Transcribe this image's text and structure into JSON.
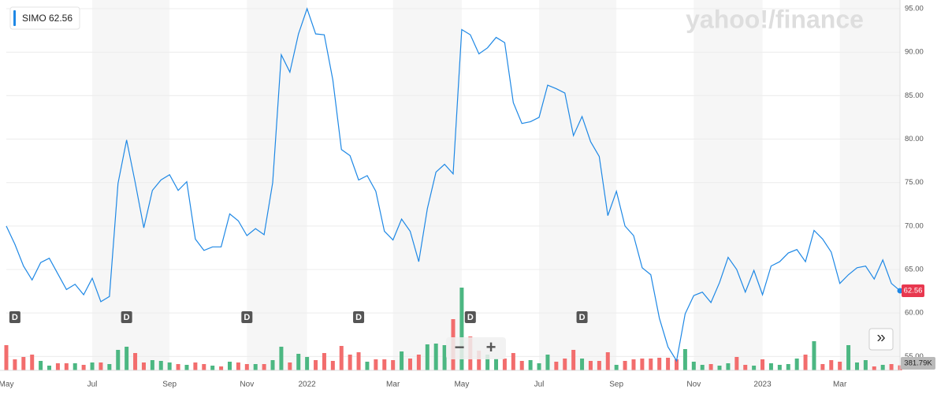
{
  "chart_data": {
    "type": "line",
    "watermark": "yahoo!/finance",
    "categories": [
      "May",
      null,
      null,
      null,
      null,
      null,
      null,
      null,
      null,
      null,
      "Jul",
      null,
      null,
      null,
      null,
      null,
      null,
      null,
      null,
      "Sep",
      null,
      null,
      null,
      null,
      null,
      null,
      null,
      null,
      "Nov",
      null,
      null,
      null,
      null,
      null,
      null,
      "2022",
      null,
      null,
      null,
      null,
      null,
      null,
      null,
      null,
      null,
      "Mar",
      null,
      null,
      null,
      null,
      null,
      null,
      null,
      "May",
      null,
      null,
      null,
      null,
      null,
      null,
      null,
      null,
      "Jul",
      null,
      null,
      null,
      null,
      null,
      null,
      null,
      null,
      "Sep",
      null,
      null,
      null,
      null,
      null,
      null,
      null,
      null,
      "Nov",
      null,
      null,
      null,
      null,
      null,
      null,
      null,
      "2023",
      null,
      null,
      null,
      null,
      null,
      null,
      null,
      null,
      "Mar",
      null,
      null,
      null,
      null,
      null,
      null,
      null
    ],
    "series": [
      {
        "name": "SIMO",
        "color": "#1e88e5",
        "values": [
          70.0,
          67.9,
          65.4,
          63.8,
          65.8,
          66.3,
          64.5,
          62.7,
          63.3,
          62.1,
          64.0,
          61.3,
          61.9,
          74.9,
          79.9,
          75.0,
          69.8,
          74.1,
          75.3,
          75.9,
          74.1,
          75.1,
          68.5,
          67.2,
          67.6,
          67.6,
          71.4,
          70.6,
          68.9,
          69.7,
          69.0,
          75.0,
          89.7,
          87.7,
          92.1,
          95.0,
          92.1,
          92.0,
          86.8,
          78.8,
          78.1,
          75.3,
          75.8,
          74.0,
          69.4,
          68.4,
          70.8,
          69.4,
          65.9,
          72.0,
          76.2,
          77.1,
          76.0,
          92.6,
          92.0,
          89.8,
          90.5,
          91.7,
          91.1,
          84.2,
          81.8,
          82.0,
          82.5,
          86.2,
          85.8,
          85.3,
          80.4,
          82.6,
          79.7,
          78.0,
          71.2,
          74.0,
          70.0,
          68.9,
          65.2,
          64.4,
          59.4,
          56.1,
          54.5,
          59.9,
          62.0,
          62.4,
          61.2,
          63.5,
          66.4,
          65.0,
          62.4,
          64.9,
          62.1,
          65.4,
          65.9,
          66.9,
          67.3,
          65.9,
          69.5,
          68.5,
          67.0,
          63.4,
          64.4,
          65.2,
          65.4,
          63.9,
          66.1,
          63.4,
          62.56
        ]
      }
    ],
    "volume": {
      "axis": "y2",
      "up_color": "#4cb782",
      "down_color": "#f26d6d",
      "values": [
        1920000,
        840000,
        1020000,
        1200000,
        720000,
        360000,
        540000,
        540000,
        540000,
        420000,
        600000,
        600000,
        480000,
        1560000,
        1800000,
        1320000,
        600000,
        780000,
        720000,
        600000,
        480000,
        420000,
        600000,
        480000,
        360000,
        300000,
        660000,
        600000,
        480000,
        480000,
        480000,
        780000,
        1800000,
        600000,
        1260000,
        1020000,
        780000,
        1320000,
        720000,
        1860000,
        1200000,
        1380000,
        660000,
        840000,
        840000,
        780000,
        1440000,
        900000,
        1200000,
        1980000,
        2040000,
        1920000,
        3900000,
        6300000,
        2580000,
        1500000,
        1200000,
        900000,
        900000,
        1320000,
        720000,
        780000,
        540000,
        1200000,
        660000,
        900000,
        1560000,
        900000,
        720000,
        720000,
        1380000,
        420000,
        720000,
        840000,
        900000,
        900000,
        960000,
        960000,
        840000,
        1620000,
        660000,
        420000,
        480000,
        360000,
        540000,
        1020000,
        420000,
        360000,
        840000,
        540000,
        420000,
        480000,
        900000,
        1200000,
        2220000,
        480000,
        780000,
        660000,
        1920000,
        600000,
        780000,
        300000,
        420000,
        480000,
        381790
      ],
      "value_labels": [
        null,
        null,
        null,
        null,
        null,
        null,
        null,
        null,
        null,
        null,
        null,
        null,
        null,
        null,
        null,
        null,
        null,
        null,
        null,
        null,
        null,
        null,
        null,
        null,
        null,
        null,
        null,
        null,
        null,
        null,
        null,
        null,
        null,
        null,
        null,
        null,
        null,
        null,
        null,
        null,
        null,
        null,
        null,
        null,
        null,
        null,
        null,
        null,
        null,
        null,
        null,
        null,
        null,
        null,
        null,
        null,
        null,
        null,
        null,
        null,
        null,
        null,
        null,
        null,
        null,
        null,
        null,
        null,
        null,
        null,
        null,
        null,
        null,
        null,
        null,
        null,
        null,
        null,
        null,
        null,
        null,
        null,
        null,
        null,
        null,
        null,
        null,
        null,
        null,
        null,
        null,
        null,
        null,
        null,
        null,
        null,
        null,
        null,
        null,
        null,
        null,
        null,
        null,
        null,
        "381.79K"
      ]
    },
    "dividends": [
      null,
      "D",
      null,
      null,
      null,
      null,
      null,
      null,
      null,
      null,
      null,
      null,
      null,
      null,
      "D",
      null,
      null,
      null,
      null,
      null,
      null,
      null,
      null,
      null,
      null,
      null,
      null,
      null,
      "D",
      null,
      null,
      null,
      null,
      null,
      null,
      null,
      null,
      null,
      null,
      null,
      null,
      "D",
      null,
      null,
      null,
      null,
      null,
      null,
      null,
      null,
      null,
      null,
      null,
      null,
      "D",
      null,
      null,
      null,
      null,
      null,
      null,
      null,
      null,
      null,
      null,
      null,
      null,
      "D",
      null,
      null,
      null,
      null,
      null,
      null,
      null,
      null,
      null,
      null,
      null,
      null,
      null,
      null,
      null,
      null,
      null,
      null,
      null,
      null,
      null,
      null,
      null,
      null,
      null,
      null,
      null,
      null,
      null,
      null,
      null,
      null,
      null,
      null,
      null,
      null,
      null
    ],
    "ylim": [
      53.4,
      96.0
    ],
    "yticks": [
      {
        "value": 55,
        "label": "55.00"
      },
      {
        "value": 60,
        "label": "60.00"
      },
      {
        "value": 65,
        "label": "65.00"
      },
      {
        "value": 70,
        "label": "70.00"
      },
      {
        "value": 75,
        "label": "75.00"
      },
      {
        "value": 80,
        "label": "80.00"
      },
      {
        "value": 85,
        "label": "85.00"
      },
      {
        "value": 90,
        "label": "90.00"
      },
      {
        "value": 95,
        "label": "95.00"
      }
    ],
    "y2lim": [
      0,
      28200000
    ],
    "grid": true,
    "controls": {
      "zoom_out": "−",
      "zoom_in": "+",
      "expand": "»"
    }
  }
}
